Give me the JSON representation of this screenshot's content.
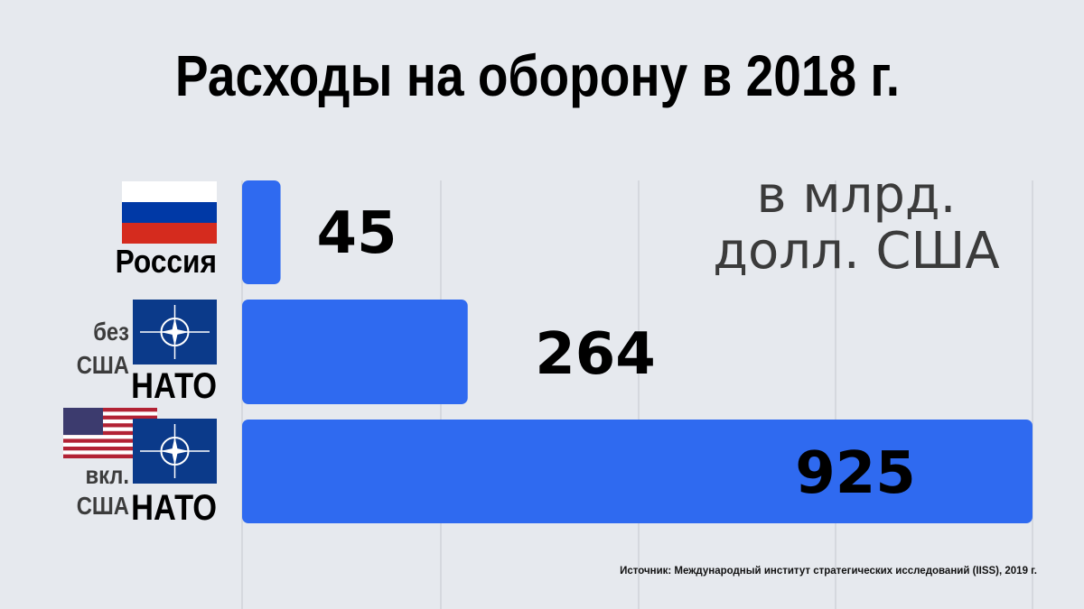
{
  "chart_data": {
    "type": "bar",
    "orientation": "horizontal",
    "title": "Расходы на оборону в 2018 г.",
    "unit_label": "в млрд.\nдолл. США",
    "categories": [
      {
        "label": "Россия",
        "flags": [
          "russia-flag-icon"
        ]
      },
      {
        "label_top": "без",
        "label_mid": "США",
        "label_bottom": "НАТО",
        "flags": [
          "nato-flag-icon"
        ]
      },
      {
        "label_top": "вкл.",
        "label_mid": "США",
        "label_bottom": "НАТО",
        "flags": [
          "us-flag-icon",
          "nato-flag-icon"
        ]
      }
    ],
    "values": [
      45,
      264,
      925
    ],
    "value_labels": [
      "45",
      "264",
      "925"
    ],
    "xlim": [
      0,
      925
    ],
    "grid": true,
    "source": "Источник: Международный институт стратегических исследований (IISS), 2019 г."
  },
  "colors": {
    "bar": "#2f6af0",
    "background": "#e6e9ee",
    "nato_blue": "#0b3a8a",
    "russia_red": "#d52b1e",
    "russia_blue": "#0039a6"
  }
}
